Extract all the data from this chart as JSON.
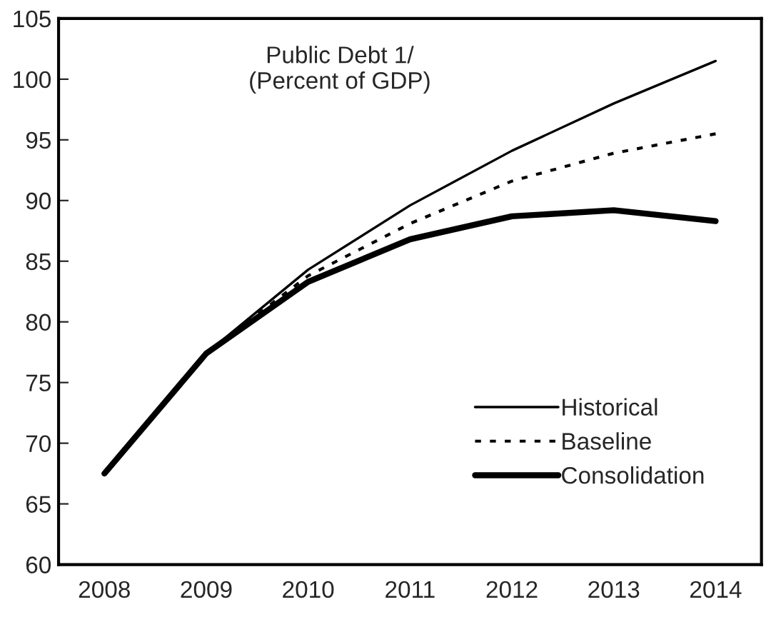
{
  "chart_data": {
    "type": "line",
    "title": "Public Debt 1/\n(Percent of GDP)",
    "categories": [
      "2008",
      "2009",
      "2010",
      "2011",
      "2012",
      "2013",
      "2014"
    ],
    "series": [
      {
        "name": "Historical",
        "color": "#000000",
        "line_style": "solid",
        "values": [
          67.5,
          77.4,
          84.3,
          89.6,
          94.1,
          98.0,
          101.5
        ]
      },
      {
        "name": "Baseline",
        "color": "#000000",
        "line_style": "dotted",
        "values": [
          67.5,
          77.4,
          83.8,
          88.1,
          91.6,
          93.9,
          95.5
        ]
      },
      {
        "name": "Consolidation",
        "color": "#000000",
        "line_style": "solid",
        "values": [
          67.5,
          77.4,
          83.3,
          86.8,
          88.7,
          89.2,
          88.3
        ]
      }
    ],
    "ylim": [
      60,
      105
    ],
    "yticks": [
      60,
      65,
      70,
      75,
      80,
      85,
      90,
      95,
      100,
      105
    ],
    "grid": false,
    "legend": "bottom right",
    "marker": "none"
  }
}
